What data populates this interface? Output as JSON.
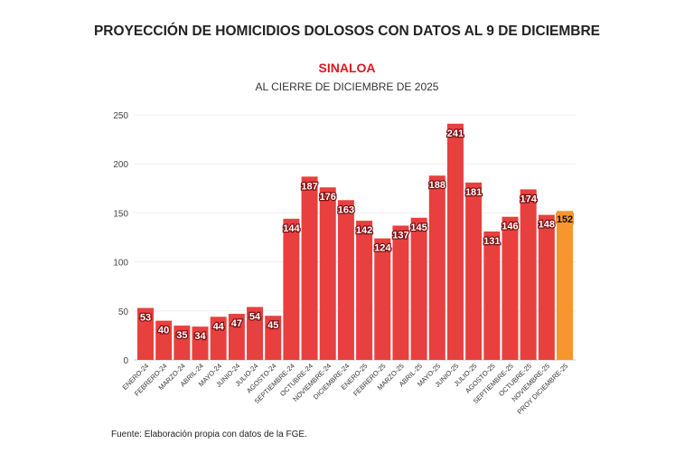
{
  "title": "PROYECCIÓN DE HOMICIDIOS DOLOSOS CON DATOS AL 9 DE DICIEMBRE",
  "subtitle": "SINALOA",
  "subtitle2": "AL CIERRE DE DICIEMBRE DE 2025",
  "source": "Fuente: Elaboración propia con datos de la FGE.",
  "colors": {
    "bar": "#e8403f",
    "projection": "#f7962e",
    "subtitle": "#d71920"
  },
  "chart_data": {
    "type": "bar",
    "title": "PROYECCIÓN DE HOMICIDIOS DOLOSOS CON DATOS AL 9 DE DICIEMBRE",
    "xlabel": "",
    "ylabel": "",
    "ylim": [
      0,
      250
    ],
    "yticks": [
      0,
      50,
      100,
      150,
      200,
      250
    ],
    "grid": true,
    "categories": [
      "ENERO-24",
      "FEBRERO-24",
      "MARZO-24",
      "ABRIL-24",
      "MAYO-24",
      "JUNIO-24",
      "JULIO-24",
      "AGOSTO-24",
      "SEPTIEMBRE-24",
      "OCTUBRE-24",
      "NOVIEMBRE-24",
      "DICIEMBRE-24",
      "ENERO-25",
      "FEBRERO-25",
      "MARZO-25",
      "ABRIL-25",
      "MAYO-25",
      "JUNIO-25",
      "JULIO-25",
      "AGOSTO-25",
      "SEPTIEMBRE-25",
      "OCTUBRE-25",
      "NOVIEMBRE-25",
      "PROY DICIEMBRE-25"
    ],
    "values": [
      53,
      40,
      35,
      34,
      44,
      47,
      54,
      45,
      144,
      187,
      176,
      163,
      142,
      124,
      137,
      145,
      188,
      241,
      181,
      131,
      146,
      174,
      148,
      152
    ],
    "projected": [
      false,
      false,
      false,
      false,
      false,
      false,
      false,
      false,
      false,
      false,
      false,
      false,
      false,
      false,
      false,
      false,
      false,
      false,
      false,
      false,
      false,
      false,
      false,
      true
    ]
  }
}
